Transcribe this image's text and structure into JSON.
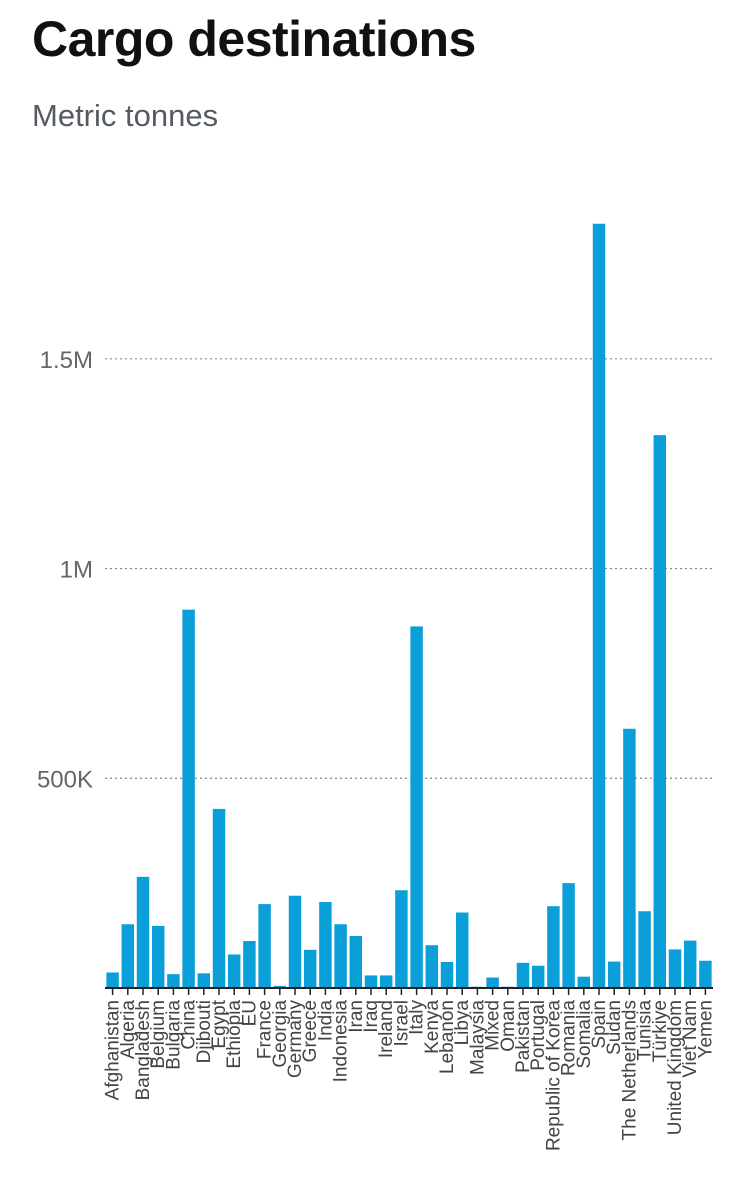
{
  "chart_data": {
    "type": "bar",
    "title": "Cargo destinations",
    "subtitle": "Metric tonnes",
    "xlabel": "",
    "ylabel": "Metric tonnes",
    "ylim": [
      0,
      1850000
    ],
    "yticks": [
      500000,
      1000000,
      1500000
    ],
    "ytick_labels": [
      "500K",
      "1M",
      "1.5M"
    ],
    "grid": true,
    "bar_color": "#0a9fd8",
    "categories": [
      "Afghanistan",
      "Algeria",
      "Bangladesh",
      "Belgium",
      "Bulgaria",
      "China",
      "Djibouti",
      "Egypt",
      "Ethiopia",
      "EU",
      "France",
      "Georgia",
      "Germany",
      "Greece",
      "India",
      "Indonesia",
      "Iran",
      "Iraq",
      "Ireland",
      "Israel",
      "Italy",
      "Kenya",
      "Lebanon",
      "Libya",
      "Malaysia",
      "Mixed",
      "Oman",
      "Pakistan",
      "Portugal",
      "Republic of Korea",
      "Romania",
      "Somalia",
      "Spain",
      "Sudan",
      "The Netherlands",
      "Tunisia",
      "Türkiye",
      "United Kingdom",
      "Viet Nam",
      "Yemen"
    ],
    "values": [
      37000,
      152000,
      265000,
      148000,
      33000,
      902000,
      35000,
      427000,
      80000,
      112000,
      200000,
      5000,
      220000,
      91000,
      205000,
      152000,
      124000,
      30000,
      30000,
      233000,
      862000,
      102000,
      62000,
      180000,
      3000,
      25000,
      3000,
      60000,
      53000,
      195000,
      250000,
      27000,
      1822000,
      63000,
      618000,
      183000,
      1318000,
      92000,
      113000,
      65000
    ]
  }
}
